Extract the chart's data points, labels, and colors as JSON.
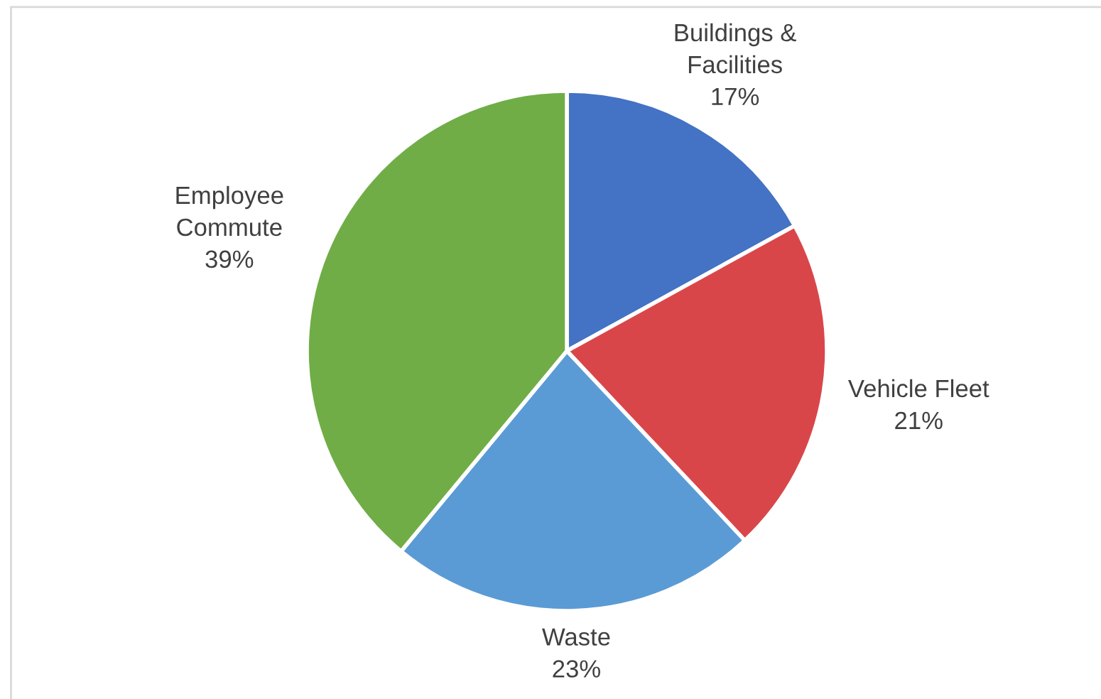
{
  "chart_data": {
    "type": "pie",
    "categories": [
      "Buildings &\nFacilities",
      "Vehicle Fleet",
      "Waste",
      "Employee\nCommute"
    ],
    "values": [
      17,
      21,
      23,
      39
    ],
    "colors": [
      "#4472c4",
      "#d9464a",
      "#5b9bd5",
      "#70ad47"
    ],
    "value_labels": [
      "17%",
      "21%",
      "23%",
      "39%"
    ],
    "legend": false
  }
}
